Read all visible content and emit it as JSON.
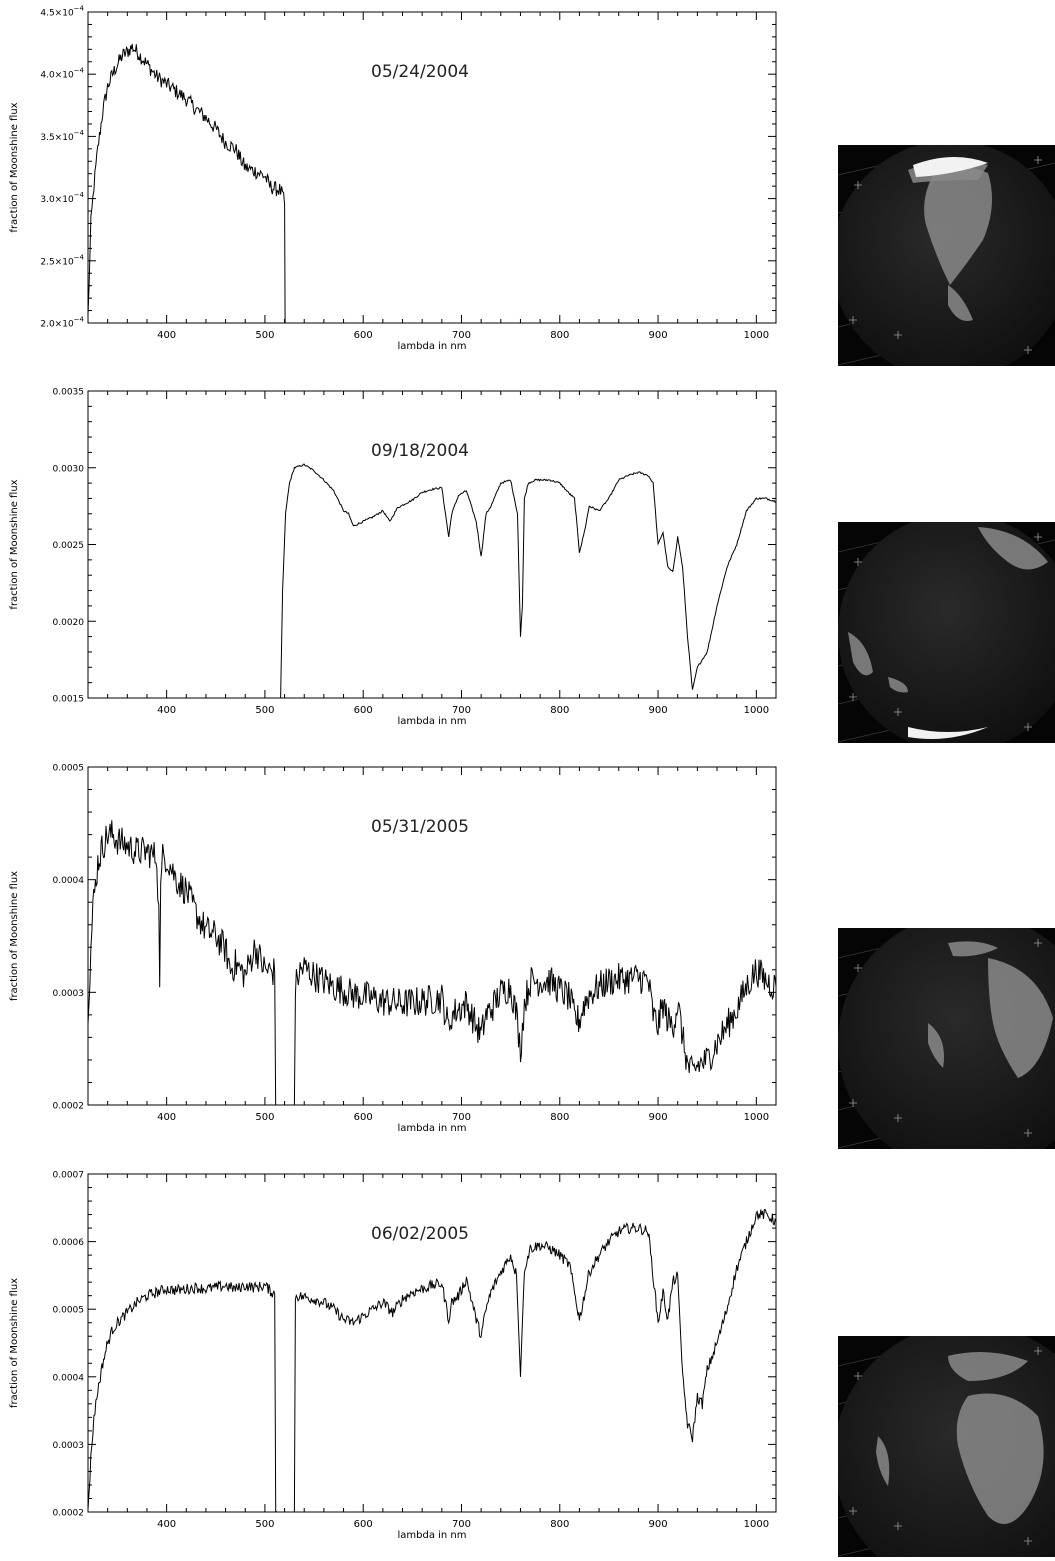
{
  "chart_data": [
    {
      "type": "line",
      "title": "05/24/2004",
      "xlabel": "lambda in nm",
      "ylabel": "fraction of Moonshine flux",
      "xlim": [
        320,
        1020
      ],
      "ylim": [
        0.0002,
        0.00045
      ],
      "x_ticks": [
        400,
        500,
        600,
        700,
        800,
        900,
        1000
      ],
      "x_tick_labels": [
        "400",
        "500",
        "600",
        "700",
        "800",
        "900",
        "1000"
      ],
      "y_ticks": [
        0.0002,
        0.00025,
        0.0003,
        0.00035,
        0.0004,
        0.00045
      ],
      "y_tick_labels": [
        {
          "mant": "2.0×10",
          "exp": "−4"
        },
        {
          "mant": "2.5×10",
          "exp": "−4"
        },
        {
          "mant": "3.0×10",
          "exp": "−4"
        },
        {
          "mant": "3.5×10",
          "exp": "−4"
        },
        {
          "mant": "4.0×10",
          "exp": "−4"
        },
        {
          "mant": "4.5×10",
          "exp": "−4"
        }
      ],
      "noise": 6e-06,
      "series": [
        {
          "x": [
            320,
            323,
            326,
            330,
            335,
            340,
            345,
            350,
            355,
            360,
            365,
            370,
            375,
            380,
            390,
            400,
            410,
            420,
            430,
            440,
            450,
            460,
            470,
            475,
            480,
            490,
            500,
            505,
            510,
            515,
            518,
            520,
            520.5
          ],
          "y": [
            0.000205,
            0.00028,
            0.00031,
            0.00034,
            0.00037,
            0.00039,
            0.0004,
            0.000408,
            0.000415,
            0.000418,
            0.000422,
            0.000418,
            0.000413,
            0.000408,
            0.000398,
            0.000392,
            0.000386,
            0.00038,
            0.000372,
            0.000365,
            0.000356,
            0.000345,
            0.00034,
            0.000332,
            0.000325,
            0.000322,
            0.000318,
            0.00031,
            0.000308,
            0.000307,
            0.000303,
            0.000295,
            0.0002
          ]
        }
      ]
    },
    {
      "type": "line",
      "title": "09/18/2004",
      "xlabel": "lambda in nm",
      "ylabel": "fraction of Moonshine flux",
      "xlim": [
        320,
        1020
      ],
      "ylim": [
        0.0015,
        0.0035
      ],
      "x_ticks": [
        400,
        500,
        600,
        700,
        800,
        900,
        1000
      ],
      "x_tick_labels": [
        "400",
        "500",
        "600",
        "700",
        "800",
        "900",
        "1000"
      ],
      "y_ticks": [
        0.0015,
        0.002,
        0.0025,
        0.003,
        0.0035
      ],
      "y_tick_labels": [
        "0.0015",
        "0.0020",
        "0.0025",
        "0.0030",
        "0.0035"
      ],
      "noise": 6e-06,
      "series": [
        {
          "x": [
            516,
            518,
            521,
            525,
            530,
            540,
            550,
            560,
            570,
            580,
            585,
            590,
            600,
            610,
            620,
            627,
            635,
            650,
            660,
            670,
            680,
            687,
            690,
            697,
            705,
            715,
            720,
            725,
            730,
            740,
            750,
            757,
            760,
            762,
            764,
            768,
            775,
            790,
            800,
            810,
            815,
            820,
            825,
            830,
            840,
            850,
            860,
            870,
            880,
            890,
            895,
            900,
            905,
            910,
            915,
            920,
            925,
            930,
            935,
            940,
            950,
            960,
            970,
            980,
            990,
            1000,
            1010,
            1020
          ],
          "y": [
            0.0015,
            0.0022,
            0.0027,
            0.0029,
            0.003,
            0.00302,
            0.00298,
            0.00292,
            0.00285,
            0.00272,
            0.0027,
            0.00262,
            0.00265,
            0.00268,
            0.00272,
            0.00265,
            0.00274,
            0.00279,
            0.00284,
            0.00286,
            0.00287,
            0.00255,
            0.0027,
            0.00282,
            0.00285,
            0.00265,
            0.00242,
            0.0027,
            0.00275,
            0.0029,
            0.00292,
            0.0027,
            0.0019,
            0.0021,
            0.0028,
            0.0029,
            0.00292,
            0.00292,
            0.0029,
            0.00283,
            0.0028,
            0.00245,
            0.00258,
            0.00275,
            0.00272,
            0.0028,
            0.00292,
            0.00295,
            0.00297,
            0.00295,
            0.0029,
            0.0025,
            0.00258,
            0.00235,
            0.00232,
            0.00255,
            0.00235,
            0.0019,
            0.00155,
            0.0017,
            0.0018,
            0.0021,
            0.00235,
            0.0025,
            0.00272,
            0.0028,
            0.0028,
            0.00278
          ]
        }
      ]
    },
    {
      "type": "line",
      "title": "05/31/2005",
      "xlabel": "lambda in nm",
      "ylabel": "fraction of Moonshine flux",
      "xlim": [
        320,
        1020
      ],
      "ylim": [
        0.0002,
        0.0005
      ],
      "x_ticks": [
        400,
        500,
        600,
        700,
        800,
        900,
        1000
      ],
      "x_tick_labels": [
        "400",
        "500",
        "600",
        "700",
        "800",
        "900",
        "1000"
      ],
      "y_ticks": [
        0.0002,
        0.0003,
        0.0004,
        0.0005
      ],
      "y_tick_labels": [
        "0.0002",
        "0.0003",
        "0.0004",
        "0.0005"
      ],
      "noise": 1.4e-05,
      "series": [
        {
          "x": [
            320,
            322,
            325,
            330,
            335,
            340,
            345,
            350,
            360,
            370,
            380,
            390,
            392,
            393,
            394,
            396,
            400,
            410,
            420,
            430,
            440,
            450,
            460,
            465,
            470,
            480,
            490,
            500,
            510,
            511,
            512
          ],
          "y": [
            0.000285,
            0.00032,
            0.000375,
            0.000415,
            0.00043,
            0.00044,
            0.00044,
            0.000435,
            0.00043,
            0.000425,
            0.000425,
            0.00042,
            0.00037,
            0.000315,
            0.00039,
            0.00042,
            0.00042,
            0.0004,
            0.00039,
            0.00037,
            0.000355,
            0.00035,
            0.000338,
            0.00032,
            0.000325,
            0.000315,
            0.00034,
            0.00032,
            0.000318,
            0.0002,
            0.0002
          ]
        },
        {
          "x": [
            530,
            531,
            535,
            540,
            550,
            560,
            570,
            580,
            590,
            600,
            620,
            640,
            660,
            680,
            687,
            690,
            697,
            705,
            715,
            720,
            725,
            730,
            740,
            750,
            756,
            760,
            764,
            770,
            790,
            800,
            810,
            815,
            820,
            825,
            830,
            840,
            850,
            860,
            870,
            880,
            890,
            895,
            900,
            905,
            910,
            915,
            920,
            925,
            930,
            935,
            940,
            950,
            960,
            970,
            980,
            990,
            1000,
            1010,
            1020
          ],
          "y": [
            0.0002,
            0.000305,
            0.000318,
            0.000322,
            0.000315,
            0.00031,
            0.000305,
            0.000302,
            0.000298,
            0.000297,
            0.000292,
            0.00029,
            0.000292,
            0.000295,
            0.000268,
            0.00028,
            0.000285,
            0.00029,
            0.00027,
            0.000262,
            0.00028,
            0.000285,
            0.0003,
            0.000305,
            0.00028,
            0.000248,
            0.00029,
            0.00031,
            0.00031,
            0.000302,
            0.000295,
            0.000278,
            0.000275,
            0.00029,
            0.000298,
            0.000305,
            0.00031,
            0.000312,
            0.000312,
            0.000313,
            0.00031,
            0.00028,
            0.00027,
            0.00029,
            0.000275,
            0.00027,
            0.00029,
            0.00026,
            0.000235,
            0.000228,
            0.000235,
            0.00024,
            0.000255,
            0.00027,
            0.000285,
            0.000305,
            0.00032,
            0.00031,
            0.000305
          ]
        }
      ]
    },
    {
      "type": "line",
      "title": "06/02/2005",
      "xlabel": "lambda in nm",
      "ylabel": "fraction of Moonshine flux",
      "xlim": [
        320,
        1020
      ],
      "ylim": [
        0.0002,
        0.0007
      ],
      "x_ticks": [
        400,
        500,
        600,
        700,
        800,
        900,
        1000
      ],
      "x_tick_labels": [
        "400",
        "500",
        "600",
        "700",
        "800",
        "900",
        "1000"
      ],
      "y_ticks": [
        0.0002,
        0.0003,
        0.0004,
        0.0005,
        0.0006,
        0.0007
      ],
      "y_tick_labels": [
        "0.0002",
        "0.0003",
        "0.0004",
        "0.0005",
        "0.0006",
        "0.0007"
      ],
      "noise": 8e-06,
      "series": [
        {
          "x": [
            320,
            323,
            326,
            330,
            335,
            340,
            345,
            350,
            360,
            370,
            380,
            390,
            400,
            410,
            420,
            430,
            440,
            450,
            460,
            470,
            480,
            490,
            500,
            505,
            510,
            511,
            512
          ],
          "y": [
            0.000205,
            0.00028,
            0.00034,
            0.00038,
            0.00042,
            0.00045,
            0.00047,
            0.00048,
            0.000495,
            0.00051,
            0.00052,
            0.000525,
            0.00053,
            0.000528,
            0.00053,
            0.000532,
            0.00053,
            0.000532,
            0.000535,
            0.00053,
            0.000535,
            0.000532,
            0.000535,
            0.000528,
            0.000522,
            0.0002,
            0.0002
          ]
        },
        {
          "x": [
            530,
            531,
            540,
            550,
            560,
            570,
            580,
            590,
            600,
            610,
            620,
            630,
            640,
            650,
            660,
            670,
            680,
            687,
            690,
            697,
            705,
            715,
            720,
            725,
            730,
            740,
            750,
            756,
            760,
            764,
            770,
            780,
            790,
            800,
            810,
            815,
            820,
            825,
            830,
            840,
            850,
            860,
            870,
            880,
            890,
            895,
            900,
            905,
            910,
            915,
            920,
            925,
            930,
            935,
            940,
            945,
            950,
            960,
            970,
            980,
            990,
            1000,
            1010,
            1020
          ],
          "y": [
            0.0002,
            0.00052,
            0.000518,
            0.000515,
            0.00051,
            0.0005,
            0.000485,
            0.00048,
            0.00049,
            0.0005,
            0.00051,
            0.000495,
            0.000515,
            0.000525,
            0.00053,
            0.000535,
            0.000538,
            0.000485,
            0.00051,
            0.00052,
            0.000545,
            0.000485,
            0.00046,
            0.0005,
            0.000525,
            0.000555,
            0.00058,
            0.00055,
            0.0004,
            0.00056,
            0.00059,
            0.000595,
            0.00059,
            0.00058,
            0.000565,
            0.000525,
            0.000485,
            0.00052,
            0.000555,
            0.00058,
            0.0006,
            0.000615,
            0.00062,
            0.00062,
            0.000615,
            0.00055,
            0.00048,
            0.000525,
            0.000485,
            0.00054,
            0.00055,
            0.0004,
            0.00033,
            0.00031,
            0.00037,
            0.00036,
            0.00041,
            0.00045,
            0.0005,
            0.00056,
            0.0006,
            0.00064,
            0.00064,
            0.00063
          ]
        }
      ]
    }
  ],
  "earth_images": [
    {
      "name": "earth-view-north-america"
    },
    {
      "name": "earth-view-southern-hemisphere"
    },
    {
      "name": "earth-view-africa-europe"
    },
    {
      "name": "earth-view-africa"
    }
  ]
}
